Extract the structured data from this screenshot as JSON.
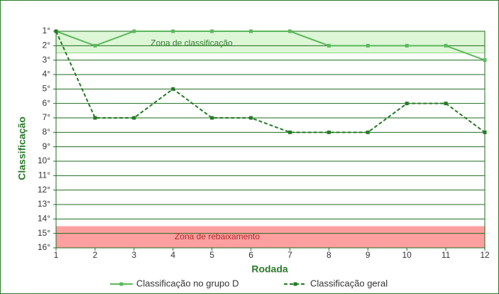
{
  "chart_data": {
    "type": "line",
    "x_label": "Rodada",
    "y_label": "Classificação",
    "x": [
      1,
      2,
      3,
      4,
      5,
      6,
      7,
      8,
      9,
      10,
      11,
      12
    ],
    "xlim": [
      1,
      12
    ],
    "xticks": [
      1,
      2,
      3,
      4,
      5,
      6,
      7,
      8,
      9,
      10,
      11,
      12
    ],
    "ylim": [
      1,
      16
    ],
    "y_reversed": true,
    "yticks": [
      {
        "value": 1,
        "label": "1°"
      },
      {
        "value": 2,
        "label": "2°"
      },
      {
        "value": 3,
        "label": "3°"
      },
      {
        "value": 4,
        "label": "4°"
      },
      {
        "value": 5,
        "label": "5°"
      },
      {
        "value": 6,
        "label": "6°"
      },
      {
        "value": 7,
        "label": "7°"
      },
      {
        "value": 8,
        "label": "8°"
      },
      {
        "value": 9,
        "label": "9°"
      },
      {
        "value": 10,
        "label": "10°"
      },
      {
        "value": 11,
        "label": "11°"
      },
      {
        "value": 12,
        "label": "12°"
      },
      {
        "value": 13,
        "label": "13°"
      },
      {
        "value": 14,
        "label": "14°"
      },
      {
        "value": 15,
        "label": "15°"
      },
      {
        "value": 16,
        "label": "16°"
      }
    ],
    "grid": true,
    "legend": "bottom",
    "zones": [
      {
        "label": "Zona de classificação",
        "from": 1,
        "to": 2.5,
        "color": "#ddf6d6",
        "text_color": "#2f7a2f"
      },
      {
        "label": "Zona de rebaixamento",
        "from": 14.5,
        "to": 16,
        "color": "#ff9f9f",
        "text_color": "#b02a2a"
      }
    ],
    "series": [
      {
        "name": "Classificação no grupo D",
        "color": "#5cb85c",
        "dash": "solid",
        "values": [
          1,
          2,
          1,
          1,
          1,
          1,
          1,
          2,
          2,
          2,
          2,
          3
        ]
      },
      {
        "name": "Classificação geral",
        "color": "#237a23",
        "dash": "dashed",
        "values": [
          1,
          7,
          7,
          5,
          7,
          7,
          8,
          8,
          8,
          6,
          6,
          8
        ]
      }
    ]
  }
}
